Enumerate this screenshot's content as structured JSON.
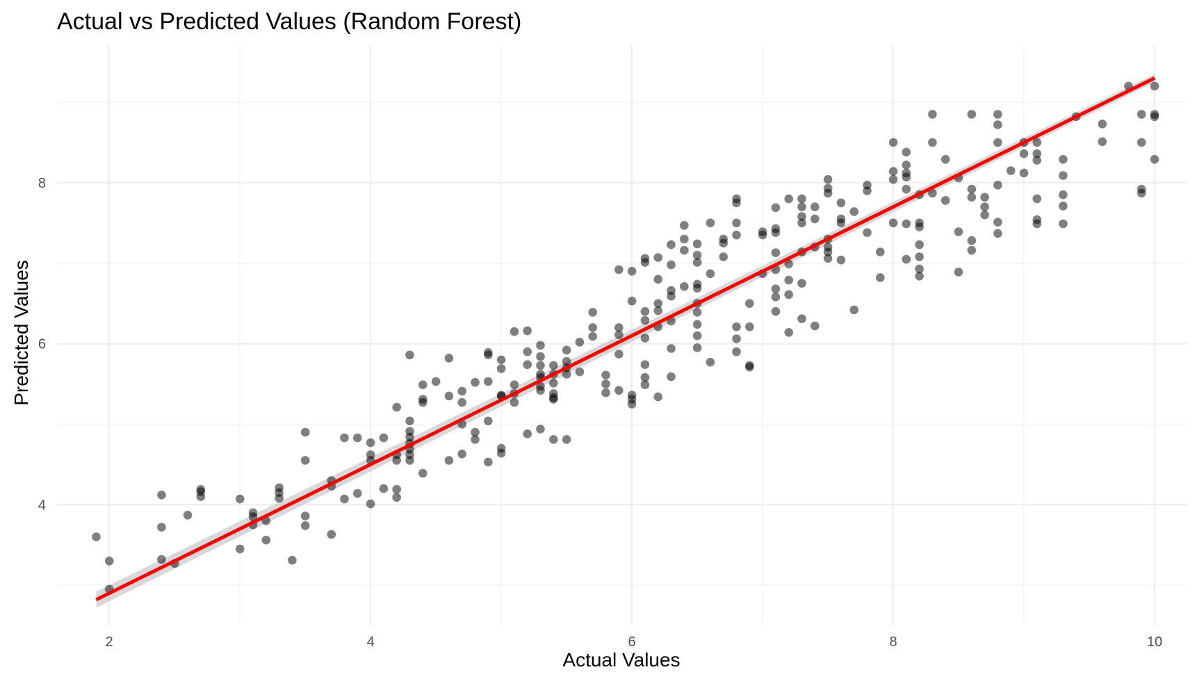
{
  "chart_data": {
    "type": "scatter",
    "title": "Actual vs Predicted Values (Random Forest)",
    "xlabel": "Actual Values",
    "ylabel": "Predicted Values",
    "xlim": [
      1.6,
      10.25
    ],
    "ylim": [
      2.5,
      9.7
    ],
    "x_ticks": [
      2,
      4,
      6,
      8,
      10
    ],
    "y_ticks": [
      4,
      6,
      8
    ],
    "x_minor": [
      3,
      5,
      7,
      9
    ],
    "y_minor": [
      3,
      5,
      7,
      9
    ],
    "grid": true,
    "legend": "none",
    "colors": {
      "points": "#000000",
      "fit_line": "#ff0000",
      "confidence_band": "#bebebe",
      "grid": "#ebebeb",
      "tick_text": "#4d4d4d"
    },
    "fit_line": {
      "x": [
        1.9,
        10.0
      ],
      "y": [
        2.82,
        9.3
      ]
    },
    "series": [
      {
        "x": [
          1.9,
          2.0,
          2.0,
          2.4,
          2.4,
          2.4,
          2.5,
          2.6,
          2.7,
          2.7,
          2.7,
          3.0,
          3.0,
          3.1,
          3.1,
          3.1,
          3.2,
          3.2,
          3.3,
          3.3,
          3.3,
          3.4,
          3.5,
          3.5,
          3.5,
          3.5,
          3.7,
          3.7,
          3.7,
          3.8,
          3.8,
          3.9,
          3.9,
          4.0,
          4.0,
          4.0,
          4.0,
          4.1,
          4.1,
          4.2,
          4.2,
          4.2,
          4.2,
          4.2,
          4.3,
          4.3,
          4.3,
          4.3,
          4.3,
          4.3,
          4.3,
          4.3,
          4.4,
          4.4,
          4.4,
          4.4,
          4.5,
          4.6,
          4.6,
          4.6,
          4.7,
          4.7,
          4.7,
          4.7,
          4.8,
          4.8,
          4.8,
          4.9,
          4.9,
          4.9,
          4.9,
          4.9,
          5.0,
          5.0,
          5.0,
          5.0,
          5.0,
          5.0,
          5.1,
          5.1,
          5.1,
          5.1,
          5.2,
          5.2,
          5.2,
          5.2,
          5.3,
          5.3,
          5.3,
          5.3,
          5.3,
          5.3,
          5.3,
          5.3,
          5.4,
          5.4,
          5.4,
          5.4,
          5.4,
          5.4,
          5.4,
          5.5,
          5.5,
          5.5,
          5.5,
          5.5,
          5.6,
          5.6,
          5.7,
          5.7,
          5.7,
          5.8,
          5.8,
          5.8,
          5.9,
          5.9,
          5.9,
          5.9,
          5.9,
          6.0,
          6.0,
          6.0,
          6.0,
          6.0,
          6.1,
          6.1,
          6.1,
          6.1,
          6.1,
          6.1,
          6.1,
          6.1,
          6.2,
          6.2,
          6.2,
          6.2,
          6.2,
          6.2,
          6.3,
          6.3,
          6.3,
          6.3,
          6.3,
          6.3,
          6.3,
          6.4,
          6.4,
          6.4,
          6.4,
          6.5,
          6.5,
          6.5,
          6.5,
          6.5,
          6.5,
          6.5,
          6.5,
          6.5,
          6.5,
          6.6,
          6.6,
          6.6,
          6.7,
          6.7,
          6.7,
          6.8,
          6.8,
          6.8,
          6.8,
          6.8,
          6.8,
          6.8,
          6.9,
          6.9,
          6.9,
          6.9,
          7.0,
          7.0,
          7.0,
          7.1,
          7.1,
          7.1,
          7.1,
          7.1,
          7.1,
          7.1,
          7.1,
          7.2,
          7.2,
          7.2,
          7.2,
          7.2,
          7.3,
          7.3,
          7.3,
          7.3,
          7.3,
          7.3,
          7.3,
          7.4,
          7.4,
          7.4,
          7.4,
          7.5,
          7.5,
          7.5,
          7.5,
          7.5,
          7.5,
          7.5,
          7.6,
          7.6,
          7.6,
          7.6,
          7.7,
          7.7,
          7.8,
          7.8,
          7.8,
          7.9,
          7.9,
          8.0,
          8.0,
          8.0,
          8.0,
          8.1,
          8.1,
          8.1,
          8.1,
          8.1,
          8.1,
          8.1,
          8.2,
          8.2,
          8.2,
          8.2,
          8.2,
          8.2,
          8.2,
          8.3,
          8.3,
          8.3,
          8.4,
          8.4,
          8.5,
          8.5,
          8.5,
          8.6,
          8.6,
          8.6,
          8.6,
          8.6,
          8.7,
          8.7,
          8.7,
          8.8,
          8.8,
          8.8,
          8.8,
          8.8,
          8.8,
          8.9,
          9.0,
          9.0,
          9.0,
          9.1,
          9.1,
          9.1,
          9.1,
          9.1,
          9.1,
          9.3,
          9.3,
          9.3,
          9.3,
          9.3,
          9.4,
          9.6,
          9.6,
          9.8,
          9.9,
          9.9,
          9.9,
          9.9,
          10.0,
          10.0,
          10.0,
          10.0
        ],
        "y": [
          3.6,
          3.3,
          2.95,
          4.12,
          3.72,
          3.32,
          3.27,
          3.87,
          4.19,
          4.16,
          4.1,
          4.07,
          3.45,
          3.9,
          3.85,
          3.75,
          3.8,
          3.56,
          4.21,
          4.15,
          4.08,
          3.31,
          4.9,
          4.55,
          3.86,
          3.74,
          4.3,
          4.23,
          3.63,
          4.83,
          4.07,
          4.83,
          4.14,
          4.77,
          4.62,
          4.55,
          4.01,
          4.83,
          4.2,
          5.21,
          4.62,
          4.55,
          4.19,
          4.09,
          5.86,
          5.04,
          4.91,
          4.84,
          4.76,
          4.69,
          4.62,
          4.55,
          5.49,
          5.31,
          5.27,
          4.39,
          5.53,
          5.82,
          5.35,
          4.55,
          5.41,
          5.27,
          5.0,
          4.63,
          5.52,
          4.9,
          4.81,
          5.89,
          5.86,
          5.53,
          5.04,
          4.53,
          5.8,
          5.69,
          5.36,
          5.35,
          4.7,
          4.64,
          6.15,
          5.49,
          5.38,
          5.27,
          6.16,
          5.9,
          5.74,
          4.88,
          5.98,
          5.84,
          5.73,
          5.62,
          5.58,
          5.47,
          5.42,
          4.94,
          5.73,
          5.62,
          5.51,
          5.38,
          5.33,
          5.31,
          4.81,
          5.92,
          5.78,
          5.7,
          5.62,
          4.81,
          6.02,
          5.65,
          6.39,
          6.2,
          6.09,
          5.61,
          5.5,
          5.39,
          6.92,
          6.2,
          6.11,
          5.87,
          5.42,
          6.9,
          6.53,
          5.36,
          5.31,
          5.25,
          7.06,
          7.01,
          6.4,
          6.29,
          6.07,
          5.74,
          5.58,
          5.49,
          7.07,
          6.8,
          6.5,
          6.41,
          6.21,
          5.34,
          7.23,
          6.98,
          6.66,
          6.59,
          6.28,
          5.94,
          5.59,
          7.47,
          7.3,
          7.16,
          6.71,
          7.24,
          7.1,
          7.01,
          6.74,
          6.69,
          6.5,
          6.39,
          6.24,
          6.1,
          5.95,
          7.5,
          6.87,
          5.77,
          7.3,
          7.25,
          7.08,
          7.8,
          7.75,
          7.5,
          7.35,
          6.21,
          6.06,
          5.9,
          6.5,
          6.21,
          5.73,
          5.71,
          7.39,
          7.35,
          6.87,
          7.69,
          7.43,
          7.38,
          7.13,
          6.92,
          6.68,
          6.58,
          6.4,
          7.8,
          6.99,
          6.79,
          6.61,
          6.14,
          7.8,
          7.7,
          7.58,
          7.5,
          7.14,
          6.75,
          6.31,
          7.7,
          7.55,
          7.2,
          6.22,
          8.04,
          7.93,
          7.87,
          7.3,
          7.2,
          7.14,
          7.06,
          7.75,
          7.55,
          7.5,
          7.04,
          7.64,
          6.42,
          7.97,
          7.9,
          7.38,
          7.14,
          6.82,
          8.5,
          8.14,
          8.04,
          7.5,
          8.38,
          8.22,
          8.12,
          8.07,
          7.92,
          7.49,
          7.05,
          7.85,
          7.5,
          7.45,
          7.23,
          7.08,
          6.93,
          6.84,
          8.85,
          8.5,
          7.87,
          8.29,
          7.78,
          8.06,
          7.39,
          6.89,
          8.85,
          7.92,
          7.82,
          7.28,
          7.16,
          7.82,
          7.7,
          7.6,
          8.85,
          8.72,
          8.5,
          7.97,
          7.51,
          7.37,
          8.15,
          8.5,
          8.36,
          8.12,
          8.5,
          8.36,
          8.28,
          7.8,
          7.54,
          7.49,
          8.29,
          8.09,
          7.85,
          7.71,
          7.49,
          8.82,
          8.73,
          8.51,
          9.2,
          8.85,
          8.5,
          7.92,
          7.87,
          9.2,
          8.85,
          8.82,
          8.29
        ]
      }
    ]
  }
}
